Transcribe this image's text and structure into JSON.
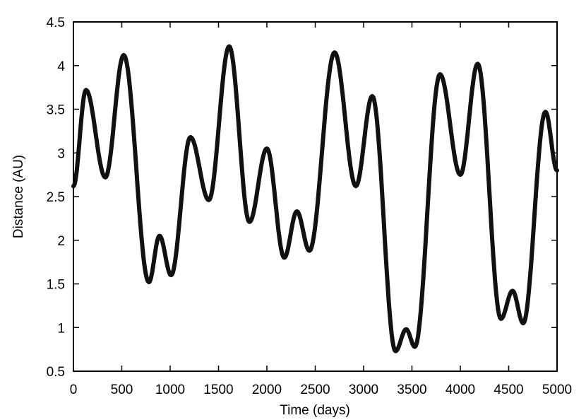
{
  "chart_data": {
    "type": "line",
    "title": "",
    "xlabel": "Time (days)",
    "ylabel": "Distance (AU)",
    "xlim": [
      0,
      5000
    ],
    "ylim": [
      0.5,
      4.5
    ],
    "xticks": [
      0,
      500,
      1000,
      1500,
      2000,
      2500,
      3000,
      3500,
      4000,
      4500,
      5000
    ],
    "yticks": [
      0.5,
      1,
      1.5,
      2,
      2.5,
      3,
      3.5,
      4,
      4.5
    ],
    "xtick_labels": [
      "0",
      "500",
      "1000",
      "1500",
      "2000",
      "2500",
      "3000",
      "3500",
      "4000",
      "4500",
      "5000"
    ],
    "ytick_labels": [
      "0.5",
      "1",
      "1.5",
      "2",
      "2.5",
      "3",
      "3.5",
      "4",
      "4.5"
    ],
    "grid": false,
    "line_color": "#111111",
    "series": [
      {
        "x": [
          0,
          130,
          330,
          520,
          780,
          890,
          1010,
          1210,
          1400,
          1610,
          1820,
          2000,
          2180,
          2310,
          2440,
          2700,
          2920,
          3090,
          3330,
          3440,
          3530,
          3790,
          4000,
          4180,
          4420,
          4540,
          4650,
          4880,
          5000
        ],
        "y": [
          2.62,
          3.72,
          2.72,
          4.12,
          1.52,
          2.05,
          1.6,
          3.18,
          2.46,
          4.22,
          2.21,
          3.05,
          1.8,
          2.33,
          1.88,
          4.15,
          2.62,
          3.65,
          0.73,
          0.98,
          0.78,
          3.9,
          2.75,
          4.02,
          1.1,
          1.42,
          1.05,
          3.47,
          2.8
        ]
      }
    ]
  }
}
